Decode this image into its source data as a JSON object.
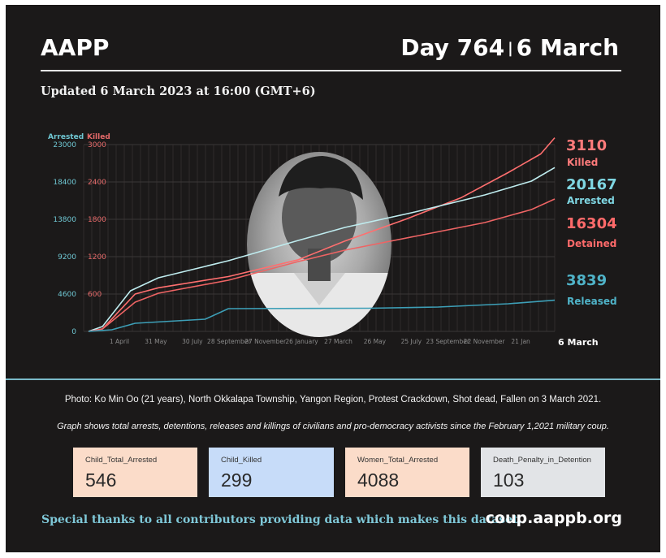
{
  "header": {
    "brand": "AAPP",
    "day_label": "Day 764",
    "separator": "|",
    "date_label": "6 March",
    "updated": "Updated 6 March 2023 at 16:00 (GMT+6)"
  },
  "chart_data": {
    "type": "line",
    "left_axis": {
      "label": "Arrested",
      "ticks": [
        "0",
        "4600",
        "9200",
        "13800",
        "18400",
        "23000"
      ],
      "color": "#6fc7d3"
    },
    "right_axis": {
      "label": "Killed",
      "ticks": [
        "600",
        "1200",
        "1800",
        "2400",
        "3000"
      ],
      "color": "#e66a6a"
    },
    "x_ticks": [
      "1 April",
      "31 May",
      "30 July",
      "28 September",
      "27 November",
      "26 January",
      "27 March",
      "26 May",
      "25 July",
      "23 September",
      "22 November",
      "21 Jan"
    ],
    "end_label": "6 March",
    "ylim_arrested": [
      0,
      23000
    ],
    "ylim_killed": [
      0,
      3000
    ],
    "series": [
      {
        "name": "Killed",
        "axis": "right",
        "color": "#ff6f6f",
        "final_value": "3110",
        "values": [
          [
            0,
            0
          ],
          [
            0.03,
            40
          ],
          [
            0.1,
            600
          ],
          [
            0.15,
            700
          ],
          [
            0.3,
            880
          ],
          [
            0.45,
            1150
          ],
          [
            0.55,
            1450
          ],
          [
            0.68,
            1800
          ],
          [
            0.8,
            2150
          ],
          [
            0.9,
            2550
          ],
          [
            0.97,
            2850
          ],
          [
            1.0,
            3110
          ]
        ]
      },
      {
        "name": "Arrested",
        "axis": "left",
        "color": "#bfecef",
        "final_value": "20167",
        "values": [
          [
            0,
            0
          ],
          [
            0.03,
            600
          ],
          [
            0.09,
            5000
          ],
          [
            0.15,
            6600
          ],
          [
            0.3,
            8700
          ],
          [
            0.45,
            11200
          ],
          [
            0.55,
            12800
          ],
          [
            0.7,
            14700
          ],
          [
            0.85,
            16800
          ],
          [
            0.95,
            18500
          ],
          [
            1.0,
            20167
          ]
        ]
      },
      {
        "name": "Detained",
        "axis": "left",
        "color": "#ee6464",
        "final_value": "16304",
        "values": [
          [
            0,
            0
          ],
          [
            0.03,
            300
          ],
          [
            0.1,
            3600
          ],
          [
            0.15,
            4700
          ],
          [
            0.3,
            6300
          ],
          [
            0.45,
            8600
          ],
          [
            0.55,
            10000
          ],
          [
            0.7,
            11700
          ],
          [
            0.85,
            13400
          ],
          [
            0.95,
            15000
          ],
          [
            1.0,
            16304
          ]
        ]
      },
      {
        "name": "Released",
        "axis": "left",
        "color": "#3d9fb7",
        "final_value": "3839",
        "values": [
          [
            0,
            0
          ],
          [
            0.05,
            200
          ],
          [
            0.1,
            1000
          ],
          [
            0.25,
            1500
          ],
          [
            0.3,
            2800
          ],
          [
            0.6,
            2850
          ],
          [
            0.75,
            3000
          ],
          [
            0.9,
            3400
          ],
          [
            1.0,
            3839
          ]
        ]
      }
    ]
  },
  "captions": {
    "photo": "Photo: Ko Min Oo (21 years), North Okkalapa Township, Yangon Region, Protest Crackdown, Shot dead, Fallen on 3 March 2021.",
    "graph": "Graph shows total arrests, detentions, releases and killings of civilians and pro-democracy activists since the February 1,2021 military coup."
  },
  "stats": [
    {
      "label": "Child_Total_Arrested",
      "value": "546",
      "color": "#fbdcc9"
    },
    {
      "label": "Child_Killed",
      "value": "299",
      "color": "#c7dcf9"
    },
    {
      "label": "Women_Total_Arrested",
      "value": "4088",
      "color": "#fbdcc9"
    },
    {
      "label": "Death_Penalty_in_Detention",
      "value": "103",
      "color": "#e2e4e7"
    }
  ],
  "footer": {
    "thanks": "Special thanks to all contributors providing data which makes this dataset.",
    "url": "coup.aappb.org"
  }
}
